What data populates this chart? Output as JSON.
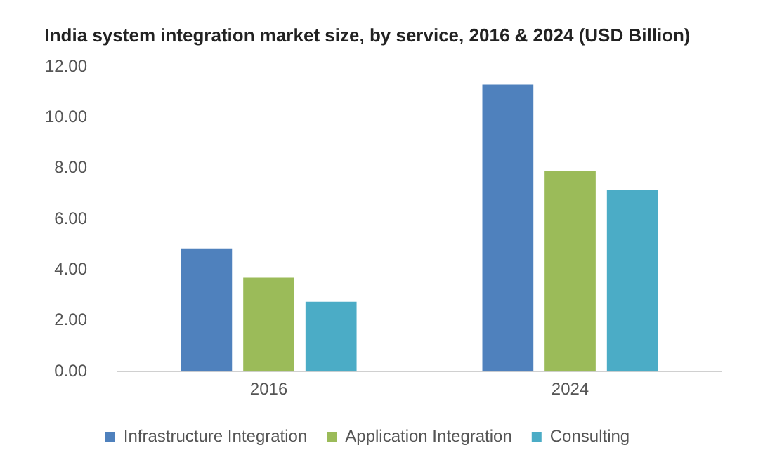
{
  "chart_data": {
    "type": "bar",
    "title": "India system integration market size, by service, 2016 & 2024 (USD Billion)",
    "categories": [
      "2016",
      "2024"
    ],
    "series": [
      {
        "name": "Infrastructure Integration",
        "color": "#4f81bd",
        "values": [
          4.85,
          11.3
        ]
      },
      {
        "name": "Application Integration",
        "color": "#9bbb59",
        "values": [
          3.7,
          7.9
        ]
      },
      {
        "name": "Consulting",
        "color": "#4bacc6",
        "values": [
          2.75,
          7.15
        ]
      }
    ],
    "ylim": [
      0,
      12
    ],
    "yticks": [
      {
        "value": 0,
        "label": "0.00"
      },
      {
        "value": 2,
        "label": "2.00"
      },
      {
        "value": 4,
        "label": "4.00"
      },
      {
        "value": 6,
        "label": "6.00"
      },
      {
        "value": 8,
        "label": "8.00"
      },
      {
        "value": 10,
        "label": "10.00"
      },
      {
        "value": 12,
        "label": "12.00"
      }
    ],
    "grid": false,
    "legend": "bottom"
  }
}
